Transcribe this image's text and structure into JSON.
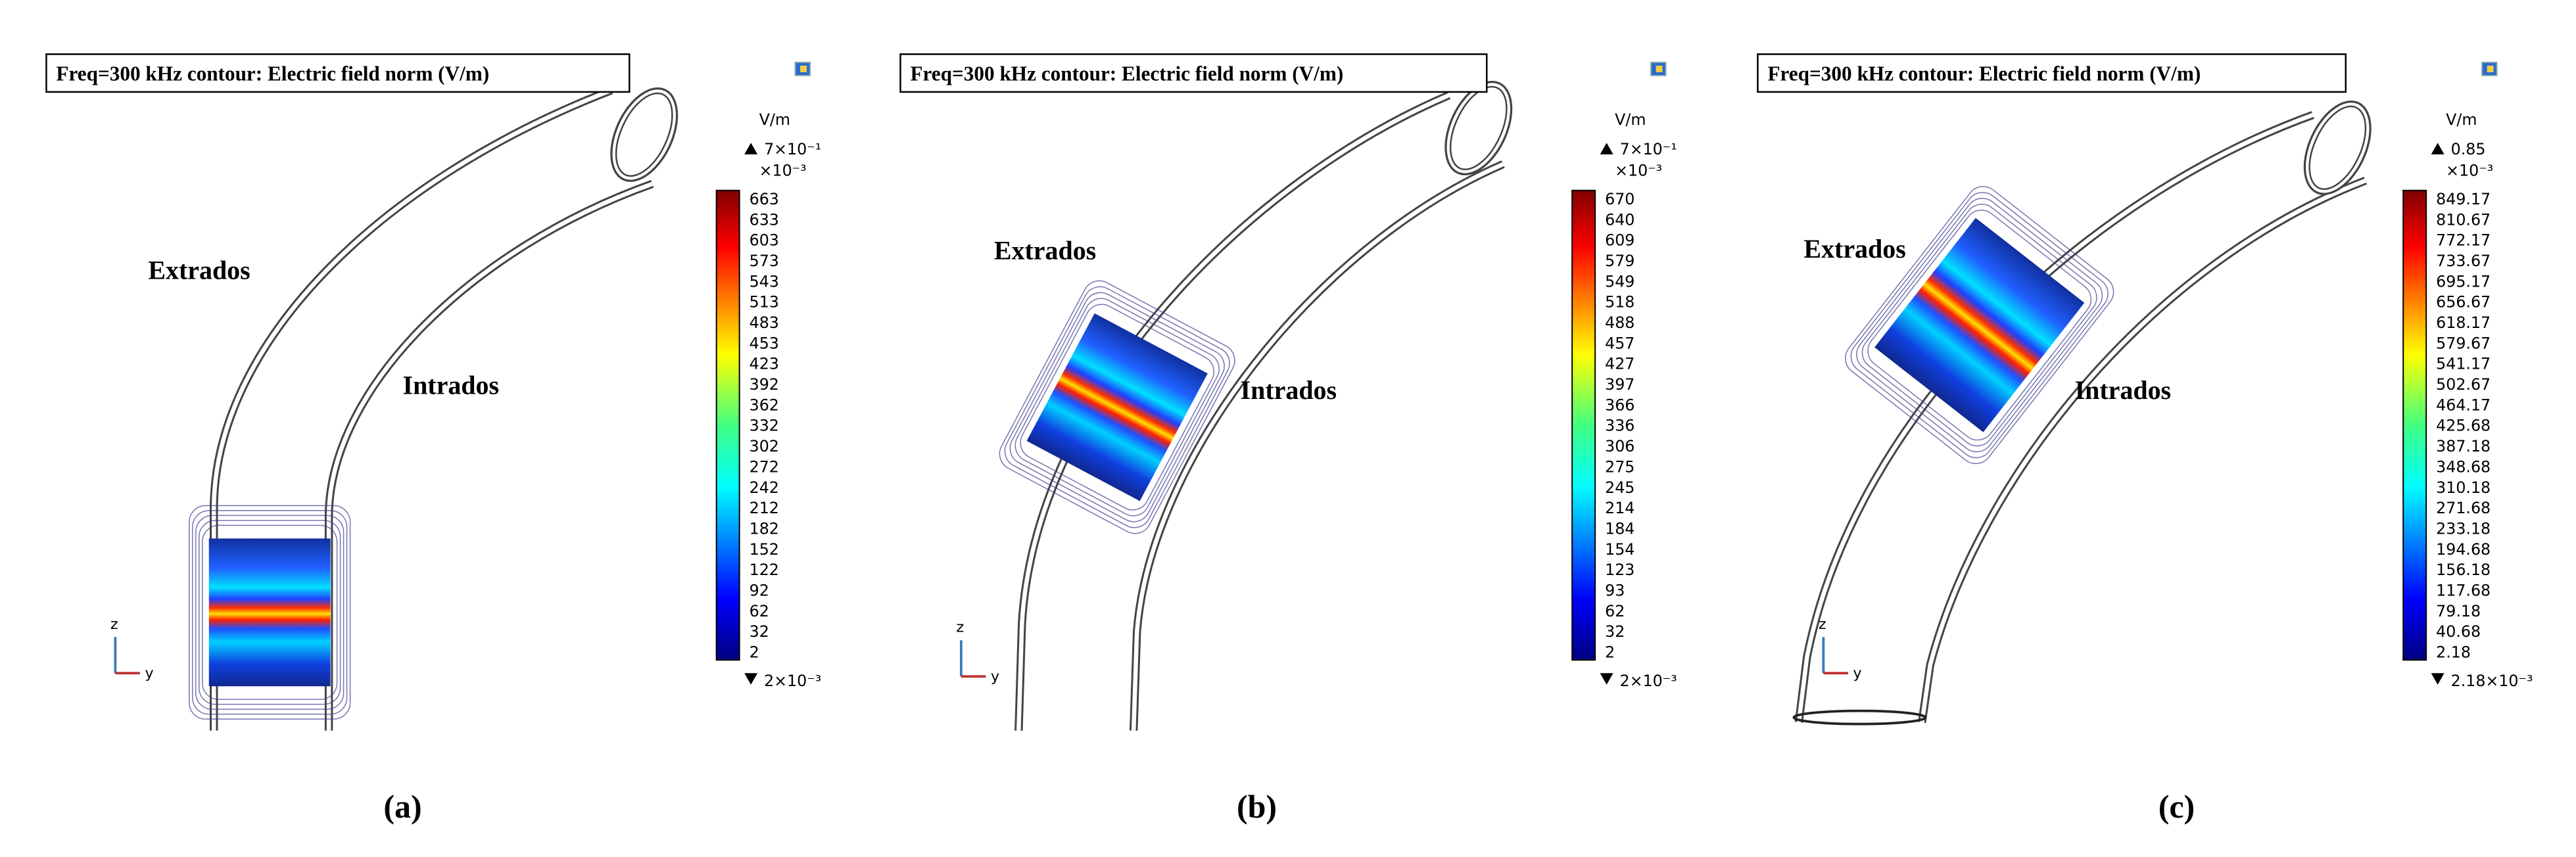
{
  "panels": [
    {
      "title": "Freq=300 kHz  contour: Electric field norm (V/m)",
      "extrados": "Extrados",
      "intrados": "Intrados",
      "colorbar": {
        "unit": "V/m",
        "max": "7×10⁻¹",
        "multiplier": "×10⁻³",
        "ticks": [
          "663",
          "633",
          "603",
          "573",
          "543",
          "513",
          "483",
          "453",
          "423",
          "392",
          "362",
          "332",
          "302",
          "272",
          "242",
          "212",
          "182",
          "152",
          "122",
          "92",
          "62",
          "32",
          "2"
        ],
        "min": "2×10⁻³"
      },
      "axes": {
        "z": "z",
        "y": "y"
      },
      "caption": "(a)"
    },
    {
      "title": "Freq=300 kHz  contour: Electric field norm (V/m)",
      "extrados": "Extrados",
      "intrados": "Intrados",
      "colorbar": {
        "unit": "V/m",
        "max": "7×10⁻¹",
        "multiplier": "×10⁻³",
        "ticks": [
          "670",
          "640",
          "609",
          "579",
          "549",
          "518",
          "488",
          "457",
          "427",
          "397",
          "366",
          "336",
          "306",
          "275",
          "245",
          "214",
          "184",
          "154",
          "123",
          "93",
          "62",
          "32",
          "2"
        ],
        "min": "2×10⁻³"
      },
      "axes": {
        "z": "z",
        "y": "y"
      },
      "caption": "(b)"
    },
    {
      "title": "Freq=300 kHz  contour: Electric field norm (V/m)",
      "extrados": "Extrados",
      "intrados": "Intrados",
      "colorbar": {
        "unit": "V/m",
        "max": "0.85",
        "multiplier": "×10⁻³",
        "ticks": [
          "849.17",
          "810.67",
          "772.17",
          "733.67",
          "695.17",
          "656.67",
          "618.17",
          "579.67",
          "541.17",
          "502.67",
          "464.17",
          "425.68",
          "387.18",
          "348.68",
          "310.18",
          "271.68",
          "233.18",
          "194.68",
          "156.18",
          "117.68",
          "79.18",
          "40.68",
          "2.18"
        ],
        "min": "2.18×10⁻³"
      },
      "axes": {
        "z": "z",
        "y": "y"
      },
      "caption": "(c)"
    }
  ]
}
